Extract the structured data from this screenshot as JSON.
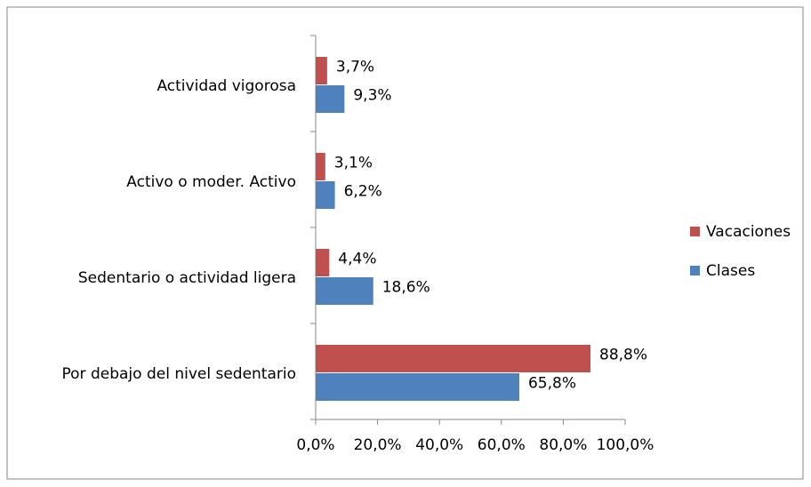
{
  "chart_data": {
    "type": "hbar",
    "categories": [
      "Por debajo del nivel sedentario",
      "Sedentario o actividad ligera",
      "Activo o moder. Activo",
      "Actividad vigorosa"
    ],
    "series": [
      {
        "name": "Vacaciones",
        "color": "#c0504d",
        "values": [
          88.8,
          4.4,
          3.1,
          3.7
        ],
        "value_labels": [
          "88,8%",
          "4,4%",
          "3,1%",
          "3,7%"
        ]
      },
      {
        "name": "Clases",
        "color": "#4f81bd",
        "values": [
          65.8,
          18.6,
          6.2,
          9.3
        ],
        "value_labels": [
          "65,8%",
          "18,6%",
          "6,2%",
          "9,3%"
        ]
      }
    ],
    "xlim": [
      0,
      100
    ],
    "xticks": [
      {
        "value": 0,
        "label": "0,0%"
      },
      {
        "value": 20,
        "label": "20,0%"
      },
      {
        "value": 40,
        "label": "40,0%"
      },
      {
        "value": 60,
        "label": "60,0%"
      },
      {
        "value": 80,
        "label": "80,0%"
      },
      {
        "value": 100,
        "label": "100,0%"
      }
    ],
    "legend": "right"
  }
}
